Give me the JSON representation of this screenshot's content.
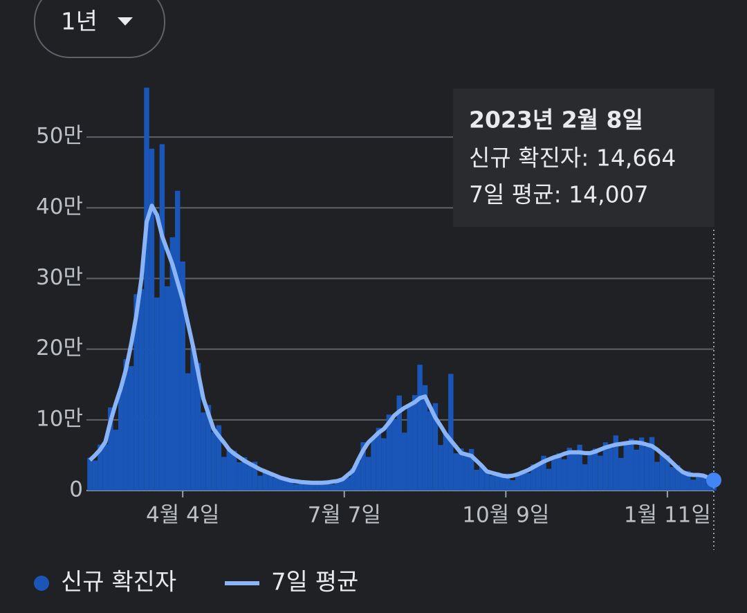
{
  "controls": {
    "range": "1년"
  },
  "chart_data": {
    "type": "bar",
    "x": [
      0,
      3,
      6,
      9,
      12,
      15,
      18,
      21,
      24,
      27,
      30,
      33,
      36,
      39,
      42,
      45,
      48,
      51,
      54,
      57,
      60,
      63,
      66,
      69,
      72,
      75,
      78,
      81,
      84,
      87,
      90,
      93,
      96,
      99,
      102,
      105,
      108,
      111,
      114,
      117,
      120,
      123,
      126,
      129,
      132,
      135,
      138,
      141,
      144,
      147,
      150,
      153,
      156,
      159,
      162,
      165,
      168,
      171,
      174,
      177,
      180,
      183,
      186,
      189,
      192,
      195,
      198,
      201,
      204,
      207,
      210,
      213,
      216,
      219,
      222,
      225,
      228,
      231,
      234,
      237,
      240,
      243,
      246,
      249,
      252,
      255,
      258,
      261,
      264,
      267,
      270,
      273,
      276,
      279,
      282,
      285,
      288,
      291,
      294,
      297,
      300,
      303,
      306,
      309,
      312,
      315,
      318,
      321,
      324,
      327,
      330,
      333,
      336,
      339,
      342,
      345,
      348,
      351,
      354,
      357,
      360,
      363
    ],
    "xlim": [
      0,
      363
    ],
    "xticks": [
      {
        "value": 54,
        "label": "4월 4일"
      },
      {
        "value": 148,
        "label": "7월 7일"
      },
      {
        "value": 242,
        "label": "10월 9일"
      },
      {
        "value": 336,
        "label": "1월 11일"
      }
    ],
    "ylim": [
      0,
      600000
    ],
    "yticks": [
      0,
      {
        "value": 100000,
        "label": "10만"
      },
      {
        "value": 200000,
        "label": "20만"
      },
      {
        "value": 300000,
        "label": "30만"
      },
      {
        "value": 400000,
        "label": "40만"
      },
      {
        "value": 500000,
        "label": "50만"
      }
    ],
    "grid": true,
    "series": [
      {
        "name": "신규 확진자",
        "type": "bar",
        "color": "#1a56b8",
        "values": [
          46400,
          42500,
          65000,
          65600,
          117600,
          86100,
          145000,
          185800,
          176000,
          277800,
          285000,
          570000,
          483600,
          273000,
          490000,
          289000,
          358400,
          424000,
          324000,
          165900,
          204000,
          180400,
          110500,
          121000,
          82700,
          92400,
          47600,
          58000,
          56200,
          40000,
          47000,
          36100,
          40800,
          21000,
          27000,
          25900,
          17900,
          20200,
          15200,
          16800,
          9100,
          12000,
          12400,
          9400,
          12300,
          10500,
          13800,
          8800,
          13500,
          17300,
          18700,
          31400,
          40900,
          68400,
          47600,
          75000,
          88600,
          74000,
          107500,
          100700,
          134400,
          81900,
          121000,
          135000,
          178000,
          149000,
          112100,
          123600,
          64400,
          80000,
          165000,
          52700,
          59400,
          48500,
          58800,
          29400,
          35000,
          29200,
          21300,
          25800,
          20000,
          24000,
          14700,
          23000,
          28100,
          24700,
          37000,
          35200,
          49200,
          30800,
          47000,
          52900,
          44200,
          60500,
          51300,
          64800,
          37100,
          53000,
          59400,
          49300,
          68300,
          59900,
          78000,
          46200,
          67000,
          73400,
          57800,
          75000,
          61800,
          75600,
          40600,
          52000,
          49700,
          33200,
          35800,
          24700,
          27600,
          15400,
          22000,
          22700,
          15300,
          14664
        ]
      },
      {
        "name": "7일 평균",
        "type": "line",
        "color": "#8ab4f8",
        "values": [
          43000,
          50000,
          58000,
          69000,
          98000,
          123000,
          145000,
          172000,
          207000,
          248000,
          300000,
          380000,
          403000,
          390000,
          360000,
          340000,
          320000,
          295000,
          270000,
          237000,
          204000,
          167000,
          130000,
          108000,
          87000,
          77000,
          68000,
          58000,
          52000,
          47000,
          42000,
          38000,
          34000,
          30000,
          27000,
          24000,
          21000,
          18000,
          16000,
          14000,
          13000,
          12000,
          11500,
          11000,
          11000,
          11000,
          11500,
          12500,
          13500,
          16000,
          22000,
          28000,
          43000,
          57000,
          68000,
          75000,
          82000,
          87000,
          96000,
          106000,
          112000,
          117000,
          121000,
          125000,
          131000,
          133000,
          118000,
          103000,
          92000,
          80000,
          71000,
          62000,
          53000,
          51000,
          49000,
          42000,
          35000,
          27000,
          25000,
          23000,
          21000,
          20000,
          21000,
          23000,
          26000,
          29000,
          33000,
          37000,
          41000,
          44000,
          47000,
          49000,
          52000,
          54000,
          54000,
          54000,
          53000,
          53000,
          55000,
          58000,
          61000,
          63000,
          65000,
          66000,
          67000,
          68000,
          68000,
          67000,
          65000,
          63000,
          58000,
          52000,
          46000,
          39000,
          32000,
          26000,
          23000,
          22000,
          22000,
          21000,
          18000,
          14007
        ]
      }
    ],
    "tooltip": {
      "title": "2023년 2월 8일",
      "lines": [
        "신규 확진자: 14,664",
        "7일 평균: 14,007"
      ]
    }
  }
}
